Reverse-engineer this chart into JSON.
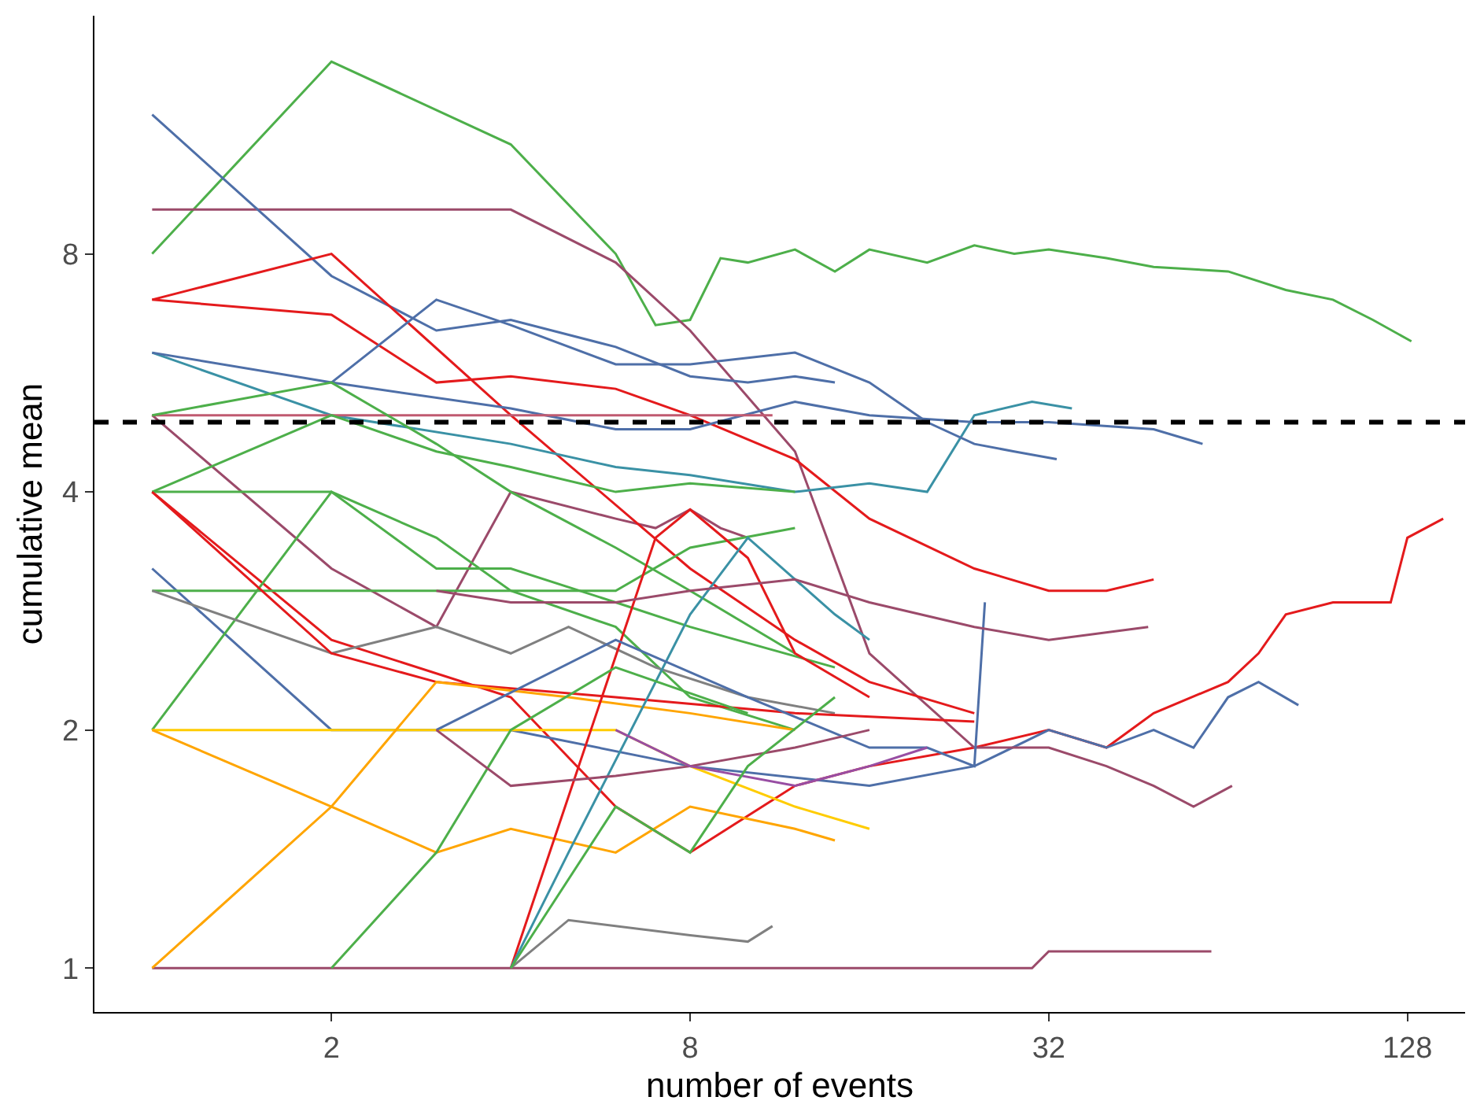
{
  "chart_data": {
    "type": "line",
    "xlabel": "number of events",
    "ylabel": "cumulative mean",
    "log": "xy",
    "xlim": [
      0.8,
      160
    ],
    "ylim": [
      0.88,
      16
    ],
    "xticks": [
      2,
      8,
      32,
      128
    ],
    "yticks": [
      1,
      2,
      4,
      8
    ],
    "ref_lines": [
      {
        "axis": "y",
        "value": 4.9,
        "line_style": "dashed",
        "color": "#000000"
      }
    ],
    "series": [
      {
        "color": "#4daf4a",
        "x": [
          1,
          2,
          4,
          6,
          7,
          8,
          9,
          10,
          12,
          14,
          16,
          20,
          24,
          28,
          32,
          40,
          48,
          64,
          80,
          96,
          112,
          130
        ],
        "values": [
          8,
          14,
          11,
          8,
          6.5,
          6.6,
          7.9,
          7.8,
          8.1,
          7.6,
          8.1,
          7.8,
          8.2,
          8.0,
          8.1,
          7.9,
          7.7,
          7.6,
          7.2,
          7.0,
          6.6,
          6.2
        ]
      },
      {
        "color": "#e41a1c",
        "x": [
          1,
          2,
          4,
          6,
          8,
          12,
          16,
          24,
          32,
          40,
          48,
          64,
          72,
          80,
          96,
          110,
          120,
          128,
          147
        ],
        "values": [
          4,
          2.6,
          2.2,
          1.6,
          1.4,
          1.7,
          1.8,
          1.9,
          2.0,
          1.9,
          2.1,
          2.3,
          2.5,
          2.8,
          2.9,
          2.9,
          2.9,
          3.5,
          3.7
        ]
      },
      {
        "color": "#4e6fa8",
        "x": [
          1,
          2,
          4,
          8,
          16,
          24,
          32,
          40,
          48,
          56,
          64,
          72,
          84
        ],
        "values": [
          3.2,
          2,
          2,
          1.8,
          1.7,
          1.8,
          2.0,
          1.9,
          2.0,
          1.9,
          2.2,
          2.3,
          2.15
        ]
      },
      {
        "color": "#9b4a6a",
        "x": [
          1,
          2,
          4,
          8,
          16,
          30,
          32,
          60
        ],
        "values": [
          1,
          1,
          1,
          1,
          1,
          1,
          1.05,
          1.05
        ]
      },
      {
        "color": "#9b4a6a",
        "x": [
          1,
          2,
          4,
          6,
          8,
          12,
          16,
          24,
          32,
          40,
          48,
          56,
          65
        ],
        "values": [
          9.1,
          9.1,
          9.1,
          7.8,
          6.4,
          4.5,
          2.5,
          1.9,
          1.9,
          1.8,
          1.7,
          1.6,
          1.7
        ]
      },
      {
        "color": "#4e6fa8",
        "x": [
          1,
          2,
          3,
          4,
          6,
          8,
          10,
          12,
          14
        ],
        "values": [
          12,
          7.5,
          6.4,
          6.6,
          6.1,
          5.6,
          5.5,
          5.6,
          5.5
        ]
      },
      {
        "color": "#9b4a6a",
        "x": [
          1,
          2,
          3,
          4,
          6,
          7,
          8,
          9,
          10
        ],
        "values": [
          5,
          3.2,
          2.7,
          4,
          3.7,
          3.6,
          3.8,
          3.6,
          3.5
        ]
      },
      {
        "color": "#e41a1c",
        "x": [
          1,
          2,
          4,
          8,
          12,
          16,
          24
        ],
        "values": [
          7,
          8,
          5,
          3.2,
          2.6,
          2.3,
          2.1
        ]
      },
      {
        "color": "#e41a1c",
        "x": [
          1,
          2,
          3,
          4,
          6,
          8,
          12,
          16,
          24,
          32,
          40,
          48
        ],
        "values": [
          7,
          6.7,
          5.5,
          5.6,
          5.4,
          5,
          4.4,
          3.7,
          3.2,
          3.0,
          3.0,
          3.1
        ]
      },
      {
        "color": "#3a91a5",
        "x": [
          1,
          2,
          4,
          6,
          8,
          12,
          16,
          20,
          24,
          30,
          35
        ],
        "values": [
          6,
          5,
          4.6,
          4.3,
          4.2,
          4.0,
          4.1,
          4.0,
          5,
          5.2,
          5.1
        ]
      },
      {
        "color": "#4e6fa8",
        "x": [
          1,
          2,
          4,
          6,
          8,
          12,
          16,
          24,
          32,
          48,
          58
        ],
        "values": [
          6,
          5.5,
          5.1,
          4.8,
          4.8,
          5.2,
          5.0,
          4.9,
          4.9,
          4.8,
          4.6
        ]
      },
      {
        "color": "#4e6fa8",
        "x": [
          2,
          3,
          4,
          6,
          8,
          12,
          16,
          20,
          24,
          28,
          33
        ],
        "values": [
          5.5,
          7,
          6.5,
          5.8,
          5.8,
          6,
          5.5,
          4.9,
          4.6,
          4.5,
          4.4
        ]
      },
      {
        "color": "#c05a70",
        "x": [
          1,
          2,
          4,
          8,
          11
        ],
        "values": [
          5,
          5,
          5,
          5,
          5
        ]
      },
      {
        "color": "#4daf4a",
        "x": [
          1,
          2,
          3,
          4,
          6,
          8,
          12
        ],
        "values": [
          5,
          5.5,
          4.6,
          4,
          3.4,
          3,
          2.5
        ]
      },
      {
        "color": "#4daf4a",
        "x": [
          1,
          2,
          3,
          4,
          6,
          8,
          12
        ],
        "values": [
          4,
          5,
          4.5,
          4.3,
          4,
          4.1,
          4
        ]
      },
      {
        "color": "#4daf4a",
        "x": [
          1,
          2,
          3,
          4,
          6,
          8,
          12
        ],
        "values": [
          4,
          4,
          3.5,
          3,
          2.7,
          2.2,
          2
        ]
      },
      {
        "color": "#4daf4a",
        "x": [
          1,
          2,
          4,
          6,
          8,
          12
        ],
        "values": [
          3,
          3,
          3,
          3,
          3.4,
          3.6
        ]
      },
      {
        "color": "#4daf4a",
        "x": [
          1,
          2,
          3,
          4,
          6,
          8,
          14
        ],
        "values": [
          2,
          4,
          3.2,
          3.2,
          2.9,
          2.7,
          2.4
        ]
      },
      {
        "color": "#808080",
        "x": [
          1,
          2,
          3,
          4,
          5,
          7,
          10,
          14
        ],
        "values": [
          3,
          2.5,
          2.7,
          2.5,
          2.7,
          2.4,
          2.2,
          2.1
        ]
      },
      {
        "color": "#e41a1c",
        "x": [
          1,
          2,
          3,
          6,
          12,
          24
        ],
        "values": [
          4,
          2.5,
          2.3,
          2.2,
          2.1,
          2.05
        ]
      },
      {
        "color": "#ffcc00",
        "x": [
          1,
          2,
          4,
          6,
          8,
          12,
          16
        ],
        "values": [
          2,
          2,
          2,
          2,
          1.8,
          1.6,
          1.5
        ]
      },
      {
        "color": "#ffa500",
        "x": [
          1,
          2,
          3,
          4,
          6,
          8,
          12,
          14
        ],
        "values": [
          2,
          1.6,
          1.4,
          1.5,
          1.4,
          1.6,
          1.5,
          1.45
        ]
      },
      {
        "color": "#ffa500",
        "x": [
          1,
          2,
          3,
          5,
          8,
          12
        ],
        "values": [
          1,
          1.6,
          2.3,
          2.2,
          2.1,
          2
        ]
      },
      {
        "color": "#808080",
        "x": [
          4,
          5,
          8,
          10,
          11
        ],
        "values": [
          1,
          1.15,
          1.1,
          1.08,
          1.13
        ]
      },
      {
        "color": "#e41a1c",
        "x": [
          4,
          7,
          8,
          10,
          12,
          16
        ],
        "values": [
          1,
          3.5,
          3.8,
          3.3,
          2.5,
          2.2
        ]
      },
      {
        "color": "#3a91a5",
        "x": [
          4,
          5,
          8,
          10,
          14,
          16
        ],
        "values": [
          1,
          1.4,
          2.8,
          3.5,
          2.8,
          2.6
        ]
      },
      {
        "color": "#4daf4a",
        "x": [
          2,
          3,
          4,
          6,
          10
        ],
        "values": [
          1,
          1.4,
          2,
          2.4,
          2.1
        ]
      },
      {
        "color": "#4e6fa8",
        "x": [
          3,
          6,
          10,
          16,
          20,
          24,
          25
        ],
        "values": [
          2,
          2.6,
          2.2,
          1.9,
          1.9,
          1.8,
          2.9
        ]
      },
      {
        "color": "#9b4a6a",
        "x": [
          3,
          4,
          6,
          8,
          12,
          16,
          24,
          32,
          47
        ],
        "values": [
          3,
          2.9,
          2.9,
          3,
          3.1,
          2.9,
          2.7,
          2.6,
          2.7
        ]
      },
      {
        "color": "#9b4a6a",
        "x": [
          3,
          4,
          6,
          8,
          12,
          16
        ],
        "values": [
          2,
          1.7,
          1.75,
          1.8,
          1.9,
          2
        ]
      },
      {
        "color": "#984ea3",
        "x": [
          6,
          8,
          12,
          16,
          20
        ],
        "values": [
          2,
          1.8,
          1.7,
          1.8,
          1.9
        ]
      },
      {
        "color": "#4daf4a",
        "x": [
          4,
          6,
          8,
          10,
          14
        ],
        "values": [
          1,
          1.6,
          1.4,
          1.8,
          2.2
        ]
      }
    ]
  }
}
